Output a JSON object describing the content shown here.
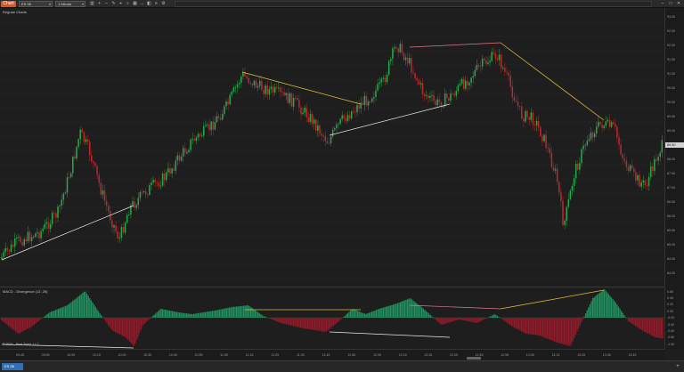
{
  "toolbar": {
    "chart_badge": "Chart",
    "instrument": "ES 06",
    "interval": "1 Minute",
    "tools": [
      {
        "name": "bars-icon",
        "glyph": "▥"
      },
      {
        "name": "plus-icon",
        "glyph": "+"
      },
      {
        "name": "minus-icon",
        "glyph": "–"
      },
      {
        "name": "pencil-icon",
        "glyph": "✎"
      },
      {
        "name": "crosshair-icon",
        "glyph": "⌖"
      },
      {
        "name": "zoom-icon",
        "glyph": "⌕"
      },
      {
        "name": "grid-icon",
        "glyph": "▦"
      },
      {
        "name": "arrow-icon",
        "glyph": "↔"
      },
      {
        "name": "camera-icon",
        "glyph": "◧"
      },
      {
        "name": "list-icon",
        "glyph": "≡"
      },
      {
        "name": "properties-icon",
        "glyph": "⚙"
      }
    ],
    "window_buttons": [
      {
        "name": "minimize-icon",
        "glyph": "–"
      },
      {
        "name": "maximize-icon",
        "glyph": "□"
      },
      {
        "name": "close-icon",
        "glyph": "✕"
      }
    ]
  },
  "price_panel": {
    "title": "Regular Charts",
    "axis_labels": [
      "93.00",
      "92.50",
      "92.00",
      "91.50",
      "91.00",
      "90.50",
      "90.00",
      "89.50",
      "89.00",
      "88.50",
      "88.00",
      "87.50",
      "87.00",
      "86.50",
      "86.00",
      "85.50",
      "85.00",
      "84.50",
      "84.00"
    ],
    "last_price": "89.50"
  },
  "indicator_panel": {
    "title": "MACD - Divergence (12, 26)",
    "subtitle": "© 2024 - Real Trade, LLC",
    "axis_labels": [
      "0.60",
      "0.40",
      "0.20",
      "0.00",
      "-0.20",
      "-0.40",
      "-0.60",
      "-0.80",
      "-1.00"
    ]
  },
  "time_axis": {
    "labels": [
      "09:45",
      "09:55",
      "10:05",
      "10:15",
      "10:25",
      "10:35",
      "10:45",
      "10:55",
      "11:05",
      "11:15",
      "11:25",
      "11:35",
      "11:45",
      "11:55",
      "12:05",
      "12:15",
      "12:25",
      "12:35",
      "12:45",
      "12:55",
      "13:05",
      "13:15",
      "13:25",
      "13:35",
      "13:45"
    ]
  },
  "tabs": {
    "active": "ES 06",
    "add_glyph": "+"
  },
  "colors": {
    "up_candle": "#2aa84e",
    "down_candle": "#c1272d",
    "hist_up": "#1f9e66",
    "hist_down": "#a3182a",
    "divergence_yellow": "#e1c23a",
    "divergence_white": "#e8e8e8",
    "divergence_pink": "#e07a8a",
    "accent": "#e0531c"
  }
}
